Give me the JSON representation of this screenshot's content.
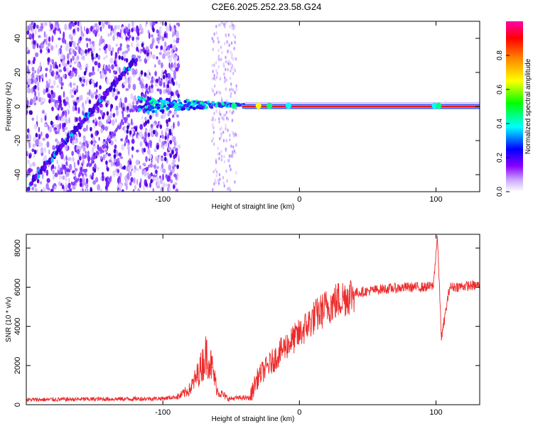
{
  "title": "C2E6.2025.252.23.58.G24",
  "chart_data": [
    {
      "type": "heatmap",
      "name": "spectrogram",
      "xlabel": "Height of straight line (km)",
      "ylabel": "Frequency (Hz)",
      "xlim": [
        -200,
        132
      ],
      "ylim": [
        -50,
        50
      ],
      "xticks": [
        -100,
        0,
        100
      ],
      "yticks": [
        -40,
        -20,
        0,
        20,
        40
      ],
      "colorbar": {
        "label": "Normalized spectral amplitude",
        "range": [
          0,
          1
        ],
        "ticks": [
          "0.0",
          "0.2",
          "0.4",
          "0.6",
          "0.8"
        ],
        "colors": [
          "#ffffff",
          "#8a00ff",
          "#0000ff",
          "#00ffff",
          "#00ff00",
          "#ffff00",
          "#ff8800",
          "#ff0000",
          "#ff00aa"
        ]
      },
      "features": {
        "diagonal_trace": {
          "from": [
            -197,
            -45
          ],
          "to": [
            -120,
            28
          ]
        },
        "carrier_line": {
          "x_start": -118,
          "x_end": 132,
          "freq_hz": 0,
          "amplitude": 1.0
        },
        "noise_region_x": [
          -200,
          -88
        ]
      }
    },
    {
      "type": "line",
      "name": "snr",
      "xlabel": "Height of straight line (km)",
      "ylabel": "SNR (10 * v/v)",
      "xlim": [
        -200,
        132
      ],
      "ylim": [
        0,
        8700
      ],
      "xticks": [
        -100,
        0,
        100
      ],
      "yticks": [
        0,
        2000,
        4000,
        6000,
        8000
      ],
      "color": "#ee2a2a",
      "series": [
        {
          "name": "SNR",
          "x": [
            -200,
            -160,
            -120,
            -100,
            -88,
            -80,
            -74,
            -68,
            -64,
            -60,
            -52,
            -44,
            -36,
            -32,
            -28,
            -20,
            -10,
            0,
            10,
            20,
            30,
            40,
            50,
            60,
            70,
            80,
            90,
            98,
            101,
            104,
            110,
            120,
            132
          ],
          "y": [
            250,
            280,
            300,
            320,
            420,
            800,
            1600,
            2600,
            1900,
            700,
            300,
            350,
            350,
            1200,
            1600,
            2200,
            3000,
            3600,
            4400,
            5000,
            5400,
            5700,
            5800,
            5900,
            5950,
            6000,
            6000,
            6050,
            8600,
            3400,
            6000,
            6050,
            6100
          ]
        }
      ]
    }
  ]
}
